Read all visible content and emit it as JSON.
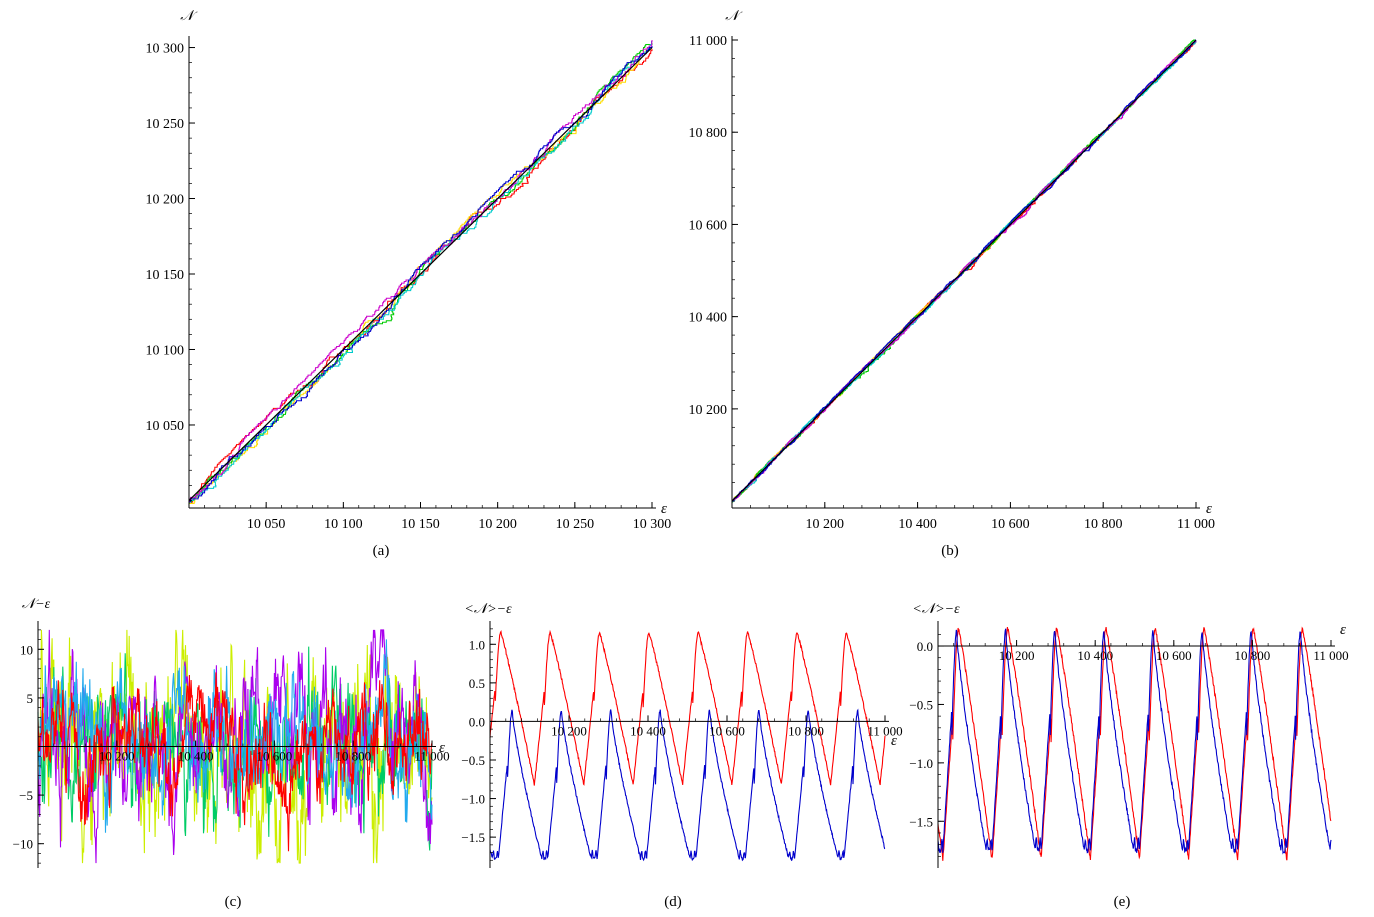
{
  "chart_data": [
    {
      "panel": "(a)",
      "type": "line",
      "xlabel": "ε",
      "ylabel": "𝒩",
      "xlim": [
        10000,
        10300
      ],
      "ylim": [
        9995,
        10305
      ],
      "xticks": [
        10050,
        10100,
        10150,
        10200,
        10250,
        10300
      ],
      "xtick_labels": [
        "10 050",
        "10 100",
        "10 150",
        "10 200",
        "10 250",
        "10 300"
      ],
      "yticks": [
        10050,
        10100,
        10150,
        10200,
        10250,
        10300
      ],
      "ytick_labels": [
        "10 050",
        "10 100",
        "10 150",
        "10 200",
        "10 250",
        "10 300"
      ],
      "series": [
        {
          "color": "#ff0000",
          "kind": "staircase"
        },
        {
          "color": "#ffdd00",
          "kind": "staircase"
        },
        {
          "color": "#00cc00",
          "kind": "staircase"
        },
        {
          "color": "#00cccc",
          "kind": "staircase"
        },
        {
          "color": "#cc00cc",
          "kind": "staircase"
        },
        {
          "color": "#0000cc",
          "kind": "staircase"
        },
        {
          "color": "#000000",
          "kind": "diagonal",
          "x": [
            10000,
            10300
          ],
          "y": [
            10000,
            10300
          ]
        }
      ]
    },
    {
      "panel": "(b)",
      "type": "line",
      "xlabel": "ε",
      "ylabel": "𝒩",
      "xlim": [
        10000,
        11000
      ],
      "ylim": [
        9985,
        11000
      ],
      "xticks": [
        10200,
        10400,
        10600,
        10800,
        11000
      ],
      "xtick_labels": [
        "10 200",
        "10 400",
        "10 600",
        "10 800",
        "11 000"
      ],
      "yticks": [
        10200,
        10400,
        10600,
        10800,
        11000
      ],
      "ytick_labels": [
        "10 200",
        "10 400",
        "10 600",
        "10 800",
        "11 000"
      ],
      "series": [
        {
          "color": "#ff0000",
          "kind": "staircase"
        },
        {
          "color": "#ffdd00",
          "kind": "staircase"
        },
        {
          "color": "#00cc00",
          "kind": "staircase"
        },
        {
          "color": "#00cccc",
          "kind": "staircase"
        },
        {
          "color": "#cc00cc",
          "kind": "staircase"
        },
        {
          "color": "#0000cc",
          "kind": "staircase"
        },
        {
          "color": "#000000",
          "kind": "diagonal",
          "x": [
            10000,
            11000
          ],
          "y": [
            10000,
            11000
          ]
        }
      ]
    },
    {
      "panel": "(c)",
      "type": "line",
      "xlabel": "ε",
      "ylabel": "𝒩−ε",
      "xlim": [
        10000,
        11000
      ],
      "ylim": [
        -12.5,
        12.5
      ],
      "xticks": [
        10200,
        10400,
        10600,
        10800,
        11000
      ],
      "xtick_labels": [
        "10 200",
        "10 400",
        "10 600",
        "10 800",
        "11 000"
      ],
      "yticks": [
        -10,
        -5,
        5,
        10
      ],
      "ytick_labels": [
        "−10",
        "−5",
        "5",
        "10"
      ],
      "series": [
        {
          "color": "#ccee00",
          "amplitude": 11
        },
        {
          "color": "#00cc66",
          "amplitude": 8
        },
        {
          "color": "#aa00ee",
          "amplitude": 8
        },
        {
          "color": "#22aaee",
          "amplitude": 7
        },
        {
          "color": "#ff0000",
          "amplitude": 6
        }
      ]
    },
    {
      "panel": "(d)",
      "type": "line",
      "xlabel": "ε",
      "ylabel": "<𝒩>−ε",
      "xlim": [
        10000,
        11000
      ],
      "ylim": [
        -1.9,
        1.25
      ],
      "xticks": [
        10200,
        10400,
        10600,
        10800,
        11000
      ],
      "xtick_labels": [
        "10 200",
        "10 400",
        "10 600",
        "10 800",
        "11 000"
      ],
      "yticks": [
        -1.5,
        -1.0,
        -0.5,
        0.0,
        0.5,
        1.0
      ],
      "ytick_labels": [
        "−1.5",
        "−1.0",
        "−0.5",
        "0.0",
        "0.5",
        "1.0"
      ],
      "period": 125,
      "series": [
        {
          "color": "#ff0000",
          "max": 1.15,
          "min": -0.82
        },
        {
          "color": "#0000cc",
          "max": 0.14,
          "min": -1.78
        }
      ]
    },
    {
      "panel": "(e)",
      "type": "line",
      "xlabel": "ε",
      "ylabel": "<𝒩>−ε",
      "xlim": [
        10000,
        11000
      ],
      "ylim": [
        -1.9,
        0.18
      ],
      "xticks": [
        10200,
        10400,
        10600,
        10800,
        11000
      ],
      "xtick_labels": [
        "10 200",
        "10 400",
        "10 600",
        "10 800",
        "11 000"
      ],
      "yticks": [
        -1.5,
        -1.0,
        -0.5,
        0.0
      ],
      "ytick_labels": [
        "−1.5",
        "−1.0",
        "−0.5",
        "0.0"
      ],
      "period": 125,
      "series": [
        {
          "color": "#ff0000",
          "max": 0.15,
          "min": -1.83
        },
        {
          "color": "#0000cc",
          "max": 0.13,
          "min": -1.75
        }
      ]
    }
  ]
}
